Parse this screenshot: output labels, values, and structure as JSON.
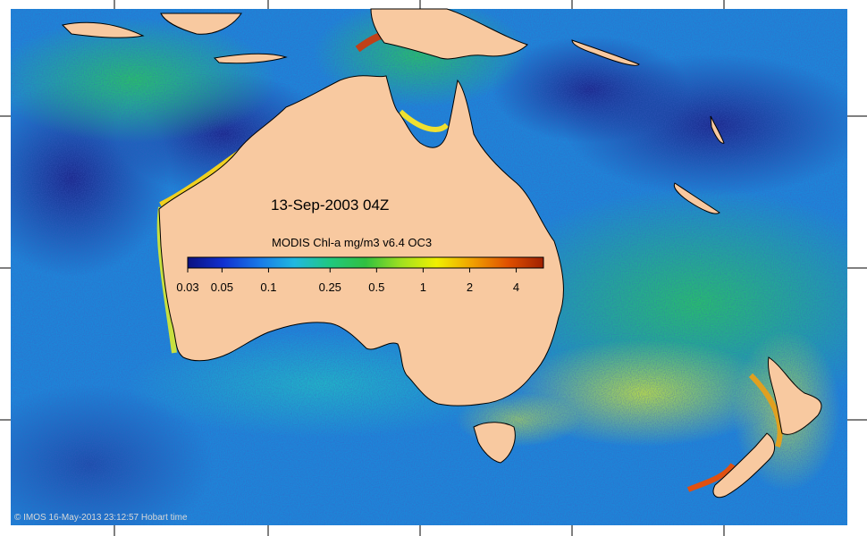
{
  "map": {
    "date_label": "13-Sep-2003 04Z",
    "colorbar": {
      "title": "MODIS Chl-a mg/m3 v6.4 OC3",
      "scale": "log",
      "range": [
        0.03,
        6
      ],
      "ticks": [
        "0.03",
        "0.05",
        "0.1",
        "0.25",
        "0.5",
        "1",
        "2",
        "4"
      ],
      "tick_values": [
        0.03,
        0.05,
        0.1,
        0.25,
        0.5,
        1,
        2,
        4
      ],
      "colors": [
        "#0b1180",
        "#1030d0",
        "#1878e8",
        "#20b8e0",
        "#20c880",
        "#30c040",
        "#a0e020",
        "#f0f000",
        "#f0a000",
        "#e05000",
        "#a02000"
      ]
    },
    "credit": "© IMOS 16-May-2013 23:12:57 Hobart time",
    "land_color": "#f8c9a0",
    "ocean_colors": {
      "deep": "#1c2f9e",
      "mid": "#1d7fd6",
      "shelf": "#22c28a",
      "bloom": "#e9f02a",
      "high": "#c0301a"
    }
  }
}
